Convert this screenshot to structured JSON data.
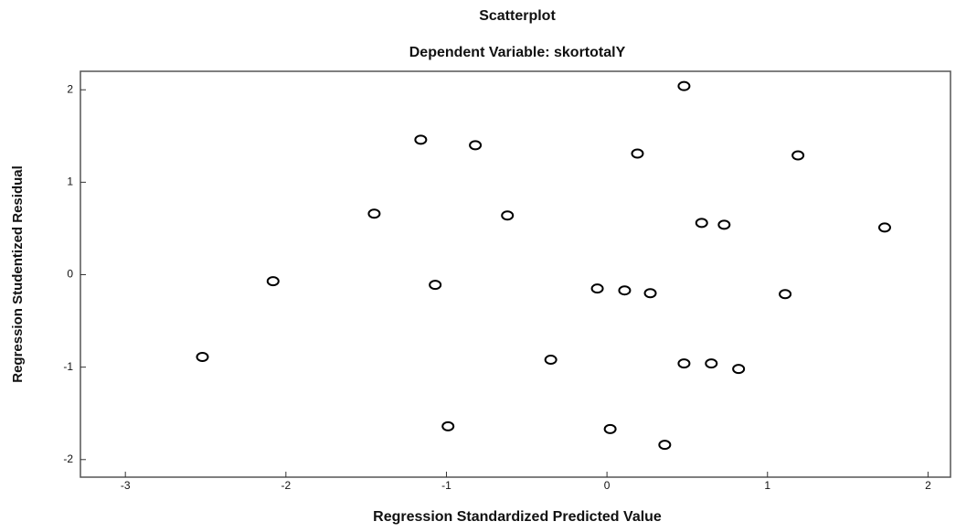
{
  "chart_data": {
    "type": "scatter",
    "title": "Scatterplot",
    "subtitle": "Dependent Variable: skortotalY",
    "x_label": "Regression Standardized Predicted Value",
    "y_label": "Regression Studentized Residual",
    "x": [
      -2.52,
      -2.08,
      -1.45,
      -1.16,
      -1.07,
      -0.99,
      -0.82,
      -0.62,
      -0.35,
      -0.06,
      0.02,
      0.11,
      0.19,
      0.27,
      0.36,
      0.48,
      0.59,
      0.48,
      0.65,
      0.73,
      0.82,
      1.11,
      1.19,
      1.73
    ],
    "values": [
      -0.89,
      -0.07,
      0.66,
      1.46,
      -0.11,
      -1.64,
      1.4,
      0.64,
      -0.92,
      -0.15,
      -1.67,
      -0.17,
      1.31,
      -0.2,
      -1.84,
      -0.96,
      0.56,
      2.04,
      -0.96,
      0.54,
      -1.02,
      -0.21,
      1.29,
      0.51
    ],
    "color": "#000000",
    "xlim": [
      -3.28,
      2.14
    ],
    "ylim": [
      -2.19,
      2.2
    ],
    "xticks": [
      -3,
      -2,
      -1,
      0,
      1,
      2
    ],
    "yticks": [
      -2,
      -1,
      0,
      1,
      2
    ]
  }
}
